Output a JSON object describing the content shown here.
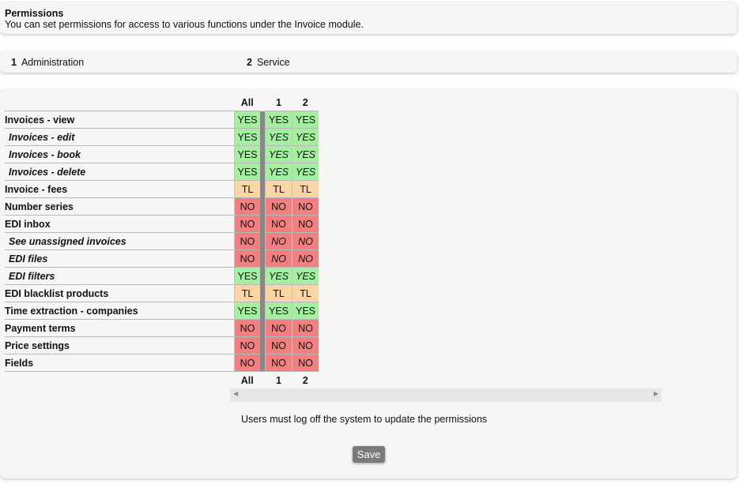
{
  "header": {
    "title": "Permissions",
    "description": "You can set permissions for access to various functions under the Invoice module."
  },
  "groups": [
    {
      "number": "1",
      "name": "Administration"
    },
    {
      "number": "2",
      "name": "Service"
    }
  ],
  "table": {
    "columns": [
      "All",
      "1",
      "2"
    ],
    "rows": [
      {
        "label": "Invoices - view",
        "sub": false,
        "values": [
          "YES",
          "YES",
          "YES"
        ],
        "italic_values": false
      },
      {
        "label": "Invoices - edit",
        "sub": true,
        "values": [
          "YES",
          "YES",
          "YES"
        ],
        "italic_values": true
      },
      {
        "label": "Invoices - book",
        "sub": true,
        "values": [
          "YES",
          "YES",
          "YES"
        ],
        "italic_values": true
      },
      {
        "label": "Invoices - delete",
        "sub": true,
        "values": [
          "YES",
          "YES",
          "YES"
        ],
        "italic_values": true
      },
      {
        "label": "Invoice - fees",
        "sub": false,
        "values": [
          "TL",
          "TL",
          "TL"
        ],
        "italic_values": false
      },
      {
        "label": "Number series",
        "sub": false,
        "values": [
          "NO",
          "NO",
          "NO"
        ],
        "italic_values": false
      },
      {
        "label": "EDI inbox",
        "sub": false,
        "values": [
          "NO",
          "NO",
          "NO"
        ],
        "italic_values": false
      },
      {
        "label": "See unassigned invoices",
        "sub": true,
        "values": [
          "NO",
          "NO",
          "NO"
        ],
        "italic_values": true
      },
      {
        "label": "EDI files",
        "sub": true,
        "values": [
          "NO",
          "NO",
          "NO"
        ],
        "italic_values": true
      },
      {
        "label": "EDI filters",
        "sub": true,
        "values": [
          "YES",
          "YES",
          "YES"
        ],
        "italic_values": true
      },
      {
        "label": "EDI blacklist products",
        "sub": false,
        "values": [
          "TL",
          "TL",
          "TL"
        ],
        "italic_values": false
      },
      {
        "label": "Time extraction - companies",
        "sub": false,
        "values": [
          "YES",
          "YES",
          "YES"
        ],
        "italic_values": false
      },
      {
        "label": "Payment terms",
        "sub": false,
        "values": [
          "NO",
          "NO",
          "NO"
        ],
        "italic_values": false
      },
      {
        "label": "Price settings",
        "sub": false,
        "values": [
          "NO",
          "NO",
          "NO"
        ],
        "italic_values": false
      },
      {
        "label": "Fields",
        "sub": false,
        "values": [
          "NO",
          "NO",
          "NO"
        ],
        "italic_values": false
      }
    ]
  },
  "scrollbar": {
    "left_icon": "scroll-left-arrow-icon",
    "right_icon": "scroll-right-arrow-icon"
  },
  "notice": "Users must log off the system to update the permissions",
  "save_label": "Save",
  "colors": {
    "YES": "#a4f0a0",
    "NO": "#f28080",
    "TL": "#fbd5a3"
  }
}
